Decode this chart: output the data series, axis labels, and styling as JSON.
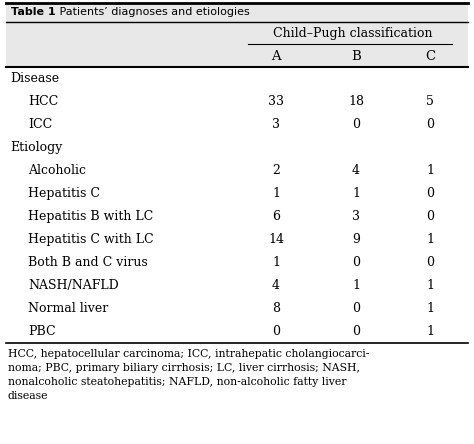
{
  "title_bold": "Table 1",
  "title_rest": "   Patients’ diagnoses and etiologies",
  "col_header_main": "Child–Pugh classification",
  "col_headers": [
    "A",
    "B",
    "C"
  ],
  "rows": [
    {
      "label": "Disease",
      "indent": false,
      "vals": [
        "",
        "",
        ""
      ]
    },
    {
      "label": "HCC",
      "indent": true,
      "vals": [
        "33",
        "18",
        "5"
      ]
    },
    {
      "label": "ICC",
      "indent": true,
      "vals": [
        "3",
        "0",
        "0"
      ]
    },
    {
      "label": "Etiology",
      "indent": false,
      "vals": [
        "",
        "",
        ""
      ]
    },
    {
      "label": "Alcoholic",
      "indent": true,
      "vals": [
        "2",
        "4",
        "1"
      ]
    },
    {
      "label": "Hepatitis C",
      "indent": true,
      "vals": [
        "1",
        "1",
        "0"
      ]
    },
    {
      "label": "Hepatitis B with LC",
      "indent": true,
      "vals": [
        "6",
        "3",
        "0"
      ]
    },
    {
      "label": "Hepatitis C with LC",
      "indent": true,
      "vals": [
        "14",
        "9",
        "1"
      ]
    },
    {
      "label": "Both B and C virus",
      "indent": true,
      "vals": [
        "1",
        "0",
        "0"
      ]
    },
    {
      "label": "NASH/NAFLD",
      "indent": true,
      "vals": [
        "4",
        "1",
        "1"
      ]
    },
    {
      "label": "Normal liver",
      "indent": true,
      "vals": [
        "8",
        "0",
        "1"
      ]
    },
    {
      "label": "PBC",
      "indent": true,
      "vals": [
        "0",
        "0",
        "1"
      ]
    }
  ],
  "footnote_lines": [
    "HCC, hepatocellular carcinoma; ICC, intrahepatic cholangiocarci-",
    "noma; PBC, primary biliary cirrhosis; LC, liver cirrhosis; NASH,",
    "nonalcoholic steatohepatitis; NAFLD, non-alcoholic fatty liver",
    "disease"
  ],
  "bg_light": "#e8e8e8",
  "bg_white": "#ffffff",
  "line_color": "#555555",
  "text_color": "#1a1a1a"
}
